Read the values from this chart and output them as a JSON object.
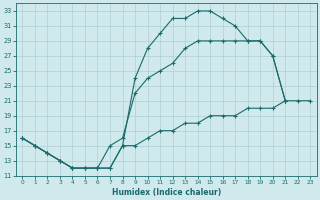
{
  "xlabel": "Humidex (Indice chaleur)",
  "background_color": "#cfe9ec",
  "grid_color": "#aecfd4",
  "line_color": "#1a6b6b",
  "xlim": [
    -0.5,
    23.5
  ],
  "ylim": [
    11,
    34
  ],
  "xticks": [
    0,
    1,
    2,
    3,
    4,
    5,
    6,
    7,
    8,
    9,
    10,
    11,
    12,
    13,
    14,
    15,
    16,
    17,
    18,
    19,
    20,
    21,
    22,
    23
  ],
  "yticks": [
    11,
    13,
    15,
    17,
    19,
    21,
    23,
    25,
    27,
    29,
    31,
    33
  ],
  "upper_x": [
    0,
    1,
    2,
    3,
    4,
    5,
    6,
    7,
    8,
    9,
    10,
    11,
    12,
    13,
    14,
    15,
    16,
    17,
    18,
    19,
    20,
    21
  ],
  "upper_y": [
    16,
    15,
    14,
    13,
    12,
    12,
    12,
    12,
    15,
    24,
    28,
    30,
    32,
    32,
    33,
    33,
    32,
    31,
    29,
    29,
    27,
    21
  ],
  "mid_x": [
    0,
    1,
    2,
    3,
    4,
    5,
    6,
    7,
    8,
    9,
    10,
    11,
    12,
    13,
    14,
    15,
    16,
    17,
    18,
    19,
    20,
    21
  ],
  "mid_y": [
    16,
    15,
    14,
    13,
    12,
    12,
    12,
    15,
    16,
    22,
    24,
    25,
    26,
    28,
    29,
    29,
    29,
    29,
    29,
    29,
    27,
    21
  ],
  "lower_x": [
    0,
    1,
    2,
    3,
    4,
    5,
    6,
    7,
    8,
    9,
    10,
    11,
    12,
    13,
    14,
    15,
    16,
    17,
    18,
    19,
    20,
    21,
    22,
    23
  ],
  "lower_y": [
    16,
    15,
    14,
    13,
    12,
    12,
    12,
    12,
    15,
    15,
    16,
    17,
    17,
    18,
    18,
    19,
    19,
    19,
    20,
    20,
    20,
    21,
    21,
    21
  ]
}
